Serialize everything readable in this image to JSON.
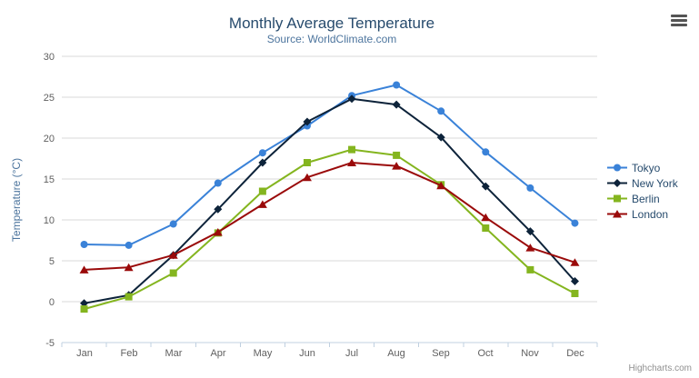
{
  "chart_data": {
    "type": "line",
    "title": "Monthly Average Temperature",
    "subtitle": "Source: WorldClimate.com",
    "categories": [
      "Jan",
      "Feb",
      "Mar",
      "Apr",
      "May",
      "Jun",
      "Jul",
      "Aug",
      "Sep",
      "Oct",
      "Nov",
      "Dec"
    ],
    "series": [
      {
        "name": "Tokyo",
        "color": "#3a82d8",
        "marker": "circle",
        "values": [
          7.0,
          6.9,
          9.5,
          14.5,
          18.2,
          21.5,
          25.2,
          26.5,
          23.3,
          18.3,
          13.9,
          9.6
        ]
      },
      {
        "name": "New York",
        "color": "#0d233a",
        "marker": "diamond",
        "values": [
          -0.2,
          0.8,
          5.7,
          11.3,
          17.0,
          22.0,
          24.8,
          24.1,
          20.1,
          14.1,
          8.6,
          2.5
        ]
      },
      {
        "name": "Berlin",
        "color": "#84b51f",
        "marker": "square",
        "values": [
          -0.9,
          0.6,
          3.5,
          8.4,
          13.5,
          17.0,
          18.6,
          17.9,
          14.3,
          9.0,
          3.9,
          1.0
        ]
      },
      {
        "name": "London",
        "color": "#9a0a0a",
        "marker": "triangle",
        "values": [
          3.9,
          4.2,
          5.7,
          8.5,
          11.9,
          15.2,
          17.0,
          16.6,
          14.2,
          10.3,
          6.6,
          4.8
        ]
      }
    ],
    "xlabel": "",
    "ylabel": "Temperature (°C)",
    "ylim": [
      -5,
      30
    ],
    "y_ticks": [
      -5,
      0,
      5,
      10,
      15,
      20,
      25,
      30
    ],
    "grid": true,
    "legend_position": "right"
  },
  "icons": {
    "context_menu": "hamburger-icon"
  },
  "credits": {
    "label": "Highcharts.com"
  }
}
